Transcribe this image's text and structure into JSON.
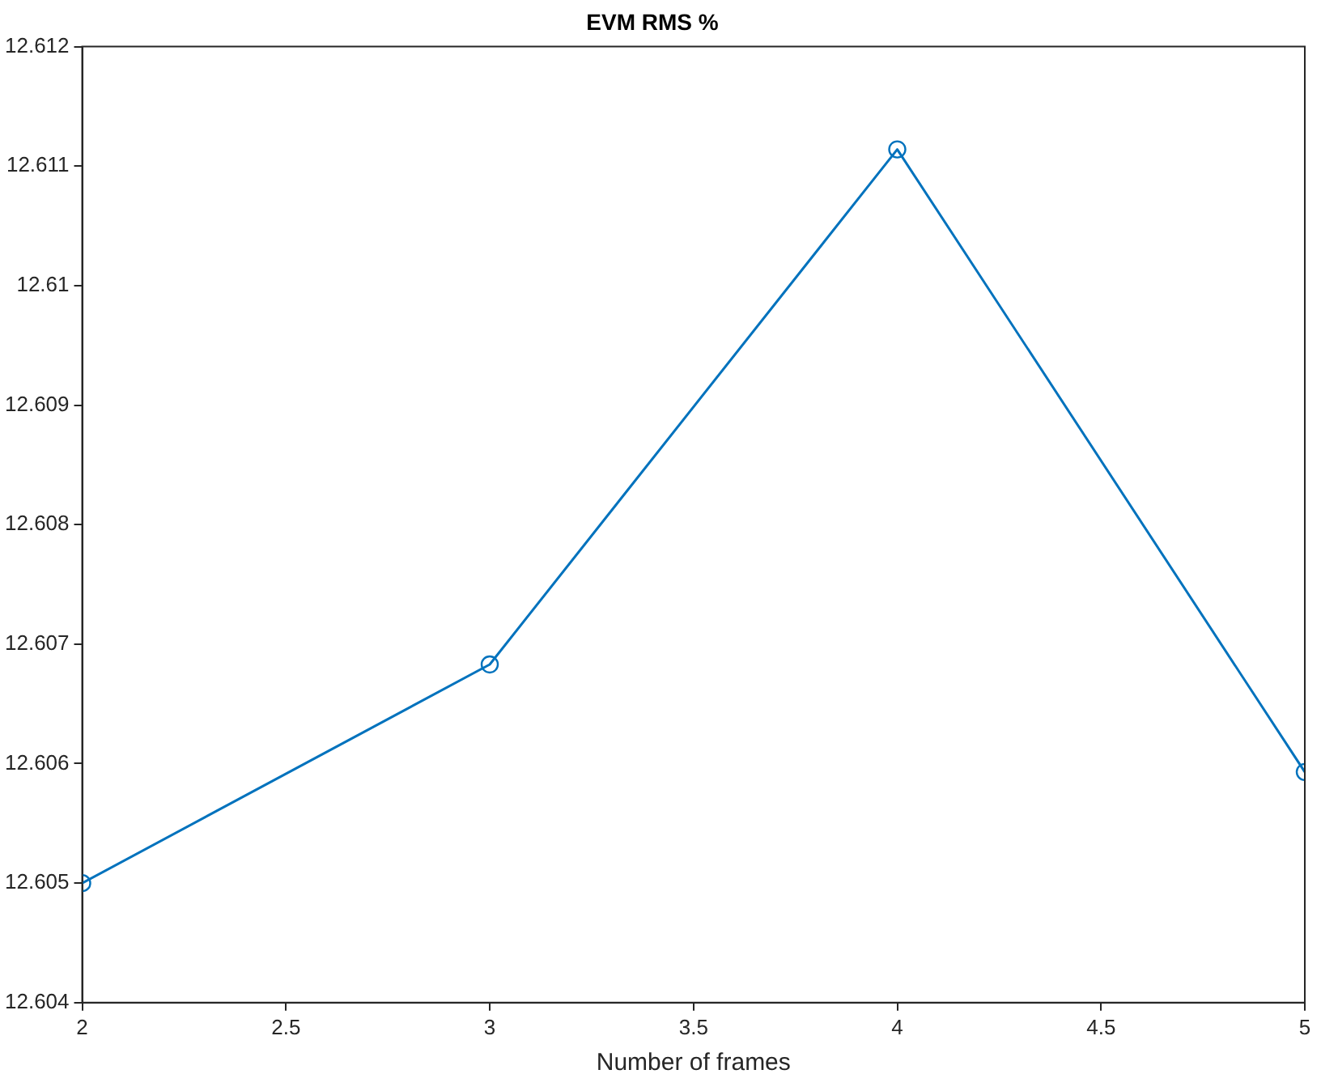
{
  "chart_data": {
    "type": "line",
    "title": "EVM RMS %",
    "xlabel": "Number of frames",
    "x": [
      2,
      3,
      4,
      5
    ],
    "series": [
      {
        "color": "#0072bd",
        "values": [
          12.605,
          12.60683,
          12.61114,
          12.60593
        ]
      }
    ],
    "xlim": [
      2,
      5
    ],
    "xticks": [
      2,
      2.5,
      3,
      3.5,
      4,
      4.5,
      5
    ],
    "ylim": [
      12.604,
      12.612
    ],
    "yticks": [
      12.604,
      12.605,
      12.606,
      12.607,
      12.608,
      12.609,
      12.61,
      12.611,
      12.612
    ],
    "grid": false,
    "legend": false,
    "marker": "circle",
    "line_style": "solid"
  }
}
